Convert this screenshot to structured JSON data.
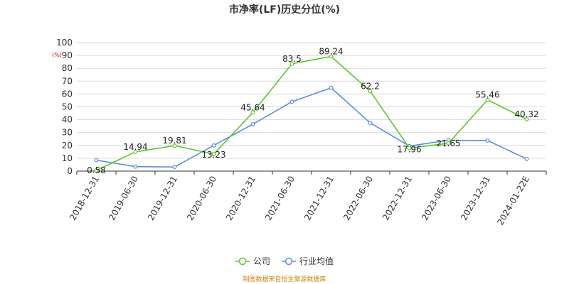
{
  "chart_data": {
    "type": "line",
    "title": "市净率(LF)历史分位(%)",
    "y_unit": "(%)",
    "ylim": [
      0,
      100
    ],
    "y_ticks": [
      0,
      10,
      20,
      30,
      40,
      50,
      60,
      70,
      80,
      90,
      100
    ],
    "grid": true,
    "legend_position": "bottom-center",
    "categories": [
      "2018-12-31",
      "2019-06-30",
      "2019-12-31",
      "2020-06-30",
      "2020-12-31",
      "2021-06-30",
      "2021-12-31",
      "2022-06-30",
      "2022-12-31",
      "2023-06-30",
      "2023-12-31",
      "2024-01-22E"
    ],
    "series": [
      {
        "name": "公司",
        "color": "#5cc72a",
        "values": [
          0.58,
          14.94,
          19.81,
          13.23,
          45.64,
          83.5,
          89.24,
          62.2,
          17.96,
          21.65,
          55.46,
          40.32
        ],
        "labels": [
          "0.58",
          "14.94",
          "19.81",
          "13.23",
          "45.64",
          "83.5",
          "89.24",
          "62.2",
          "17.96",
          "21.65",
          "55.46",
          "40.32"
        ]
      },
      {
        "name": "行业均值",
        "color": "#5b8ddb",
        "values": [
          8.5,
          3.5,
          3.2,
          20.0,
          36.5,
          54.0,
          64.8,
          37.5,
          19.5,
          24.0,
          23.8,
          9.5
        ]
      }
    ]
  },
  "source_note": "制图数据来自恒生聚源数据库"
}
